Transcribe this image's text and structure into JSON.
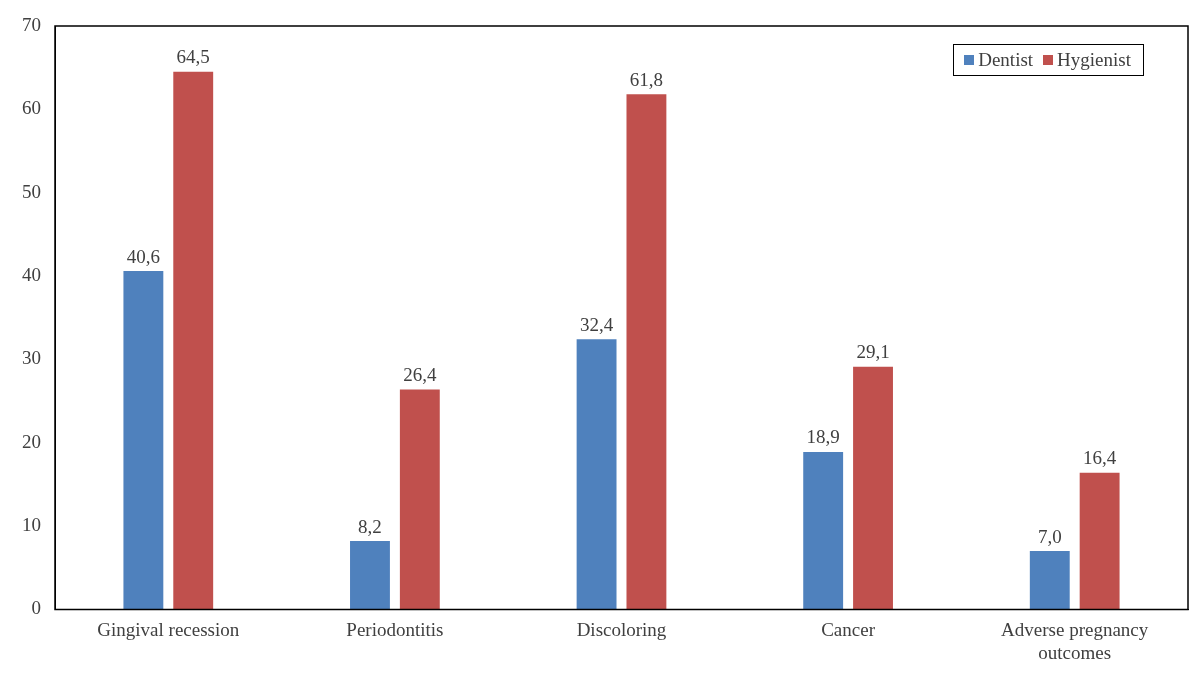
{
  "chart_data": {
    "type": "bar",
    "categories": [
      "Gingival recession",
      "Periodontitis",
      "Discoloring",
      "Cancer",
      "Adverse pregnancy outcomes"
    ],
    "series": [
      {
        "name": "Dentist",
        "color": "#4f81bd",
        "values": [
          40.6,
          8.2,
          32.4,
          18.9,
          7.0
        ],
        "value_labels": [
          "40,6",
          "8,2",
          "32,4",
          "18,9",
          "7,0"
        ]
      },
      {
        "name": "Hygienist",
        "color": "#c0504d",
        "values": [
          64.5,
          26.4,
          61.8,
          29.1,
          16.4
        ],
        "value_labels": [
          "64,5",
          "26,4",
          "61,8",
          "29,1",
          "16,4"
        ]
      }
    ],
    "ylim": [
      0,
      70
    ],
    "yticks": [
      0,
      10,
      20,
      30,
      40,
      50,
      60,
      70
    ],
    "grid": false,
    "legend": "top right"
  }
}
